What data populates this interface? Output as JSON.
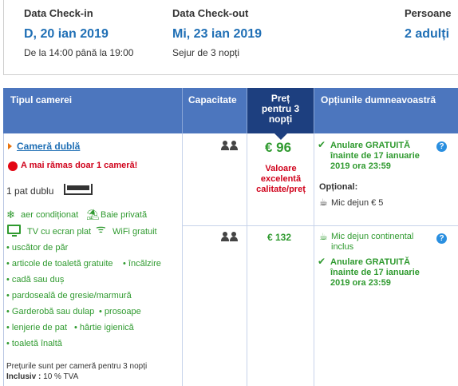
{
  "dates": {
    "checkin": {
      "label": "Data Check-in",
      "value": "D, 20 ian 2019",
      "sub": "De la 14:00 până la 19:00"
    },
    "checkout": {
      "label": "Data Check-out",
      "value": "Mi, 23 ian 2019",
      "sub": "Sejur de 3 nopți"
    },
    "guests": {
      "label": "Persoane",
      "value": "2 adulți"
    }
  },
  "table": {
    "headers": {
      "room_type": "Tipul camerei",
      "capacity": "Capacitate",
      "price_lines": [
        "Preț",
        "pentru 3",
        "nopți"
      ],
      "options": "Opțiunile dumneavoastră"
    },
    "room": {
      "name": "Cameră dublă",
      "warning": "A mai rămas doar 1 cameră!",
      "bed": "1 pat dublu",
      "amenities_icon": [
        {
          "icon": "snowflake-icon",
          "text": "aer condiționat"
        },
        {
          "icon": "sea-view-icon",
          "text": "Baie privată"
        },
        {
          "icon": "tv-icon",
          "text": "TV cu ecran plat"
        },
        {
          "icon": "wifi-icon",
          "text": "WiFi gratuit"
        }
      ],
      "amenities": [
        "• uscător de păr",
        "• articole de toaletă gratuite",
        "• încălzire",
        "• cadă sau duș",
        "• pardoseală de gresie/marmură",
        "• Garderobă sau dulap",
        "• prosoape",
        "• lenjerie de pat",
        "• hârtie igienică",
        "• toaletă înaltă"
      ],
      "price_note": "Prețurile sunt per cameră pentru 3 nopți",
      "vat_label": "Inclusiv :",
      "vat_value": "10 % TVA"
    },
    "offers": [
      {
        "price": "€ 96",
        "badge_lines": [
          "Valoare",
          "excelentă",
          "calitate/preț"
        ],
        "cancel_lines": [
          "Anulare GRATUITĂ",
          "înainte de 17 ianuarie",
          "2019 ora 23:59"
        ],
        "optional_label": "Opțional:",
        "breakfast": "Mic dejun € 5"
      },
      {
        "price": "€ 132",
        "breakfast_lines": [
          "Mic dejun continental",
          "inclus"
        ],
        "cancel_lines": [
          "Anulare GRATUITĂ",
          "înainte de 17 ianuarie",
          "2019 ora 23:59"
        ]
      }
    ],
    "info_icon": "?"
  },
  "colors": {
    "header_bg": "#4c76be",
    "header_active": "#1d3f7f",
    "accent_blue": "#1f6fb5",
    "green": "#2f9a2f",
    "red": "#d0021b"
  }
}
